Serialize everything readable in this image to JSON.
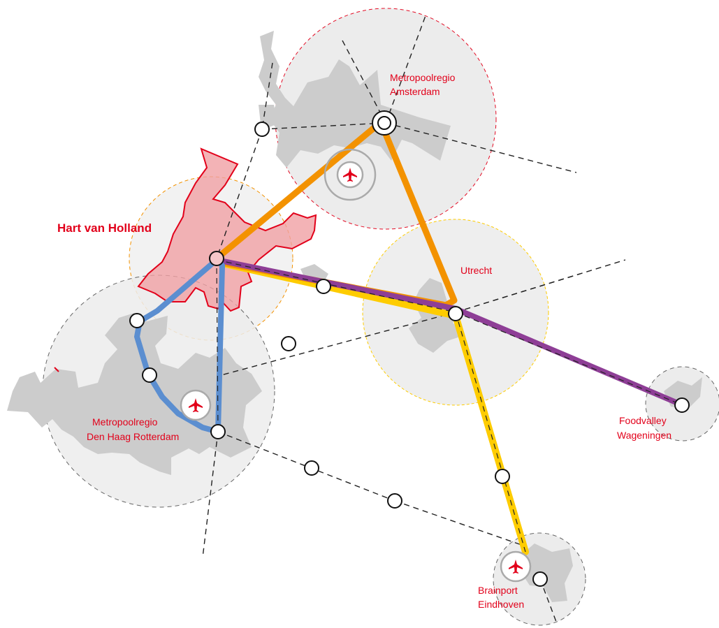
{
  "title": "Hart van Holland",
  "regions": {
    "amsterdam": {
      "line1": "Metropoolregio",
      "line2": "Amsterdam"
    },
    "utrecht": {
      "line1": "Utrecht"
    },
    "denhaag": {
      "line1": "Metropoolregio",
      "line2": "Den Haag Rotterdam"
    },
    "foodvalley": {
      "line1": "Foodvalley",
      "line2": "Wageningen"
    },
    "eindhoven": {
      "line1": "Brainport",
      "line2": "Eindhoven"
    }
  },
  "icons": {
    "airport": "airplane-icon",
    "station": "station-node"
  },
  "colors": {
    "label": "#e2001a",
    "hart_fill": "#f0a0a4",
    "hart_stroke": "#e2001a",
    "orange": "#f39200",
    "yellow": "#fecc00",
    "purple": "#8e3e96",
    "blue": "#5b8ed0",
    "urban": "#cccccc",
    "region": "#ececec"
  }
}
